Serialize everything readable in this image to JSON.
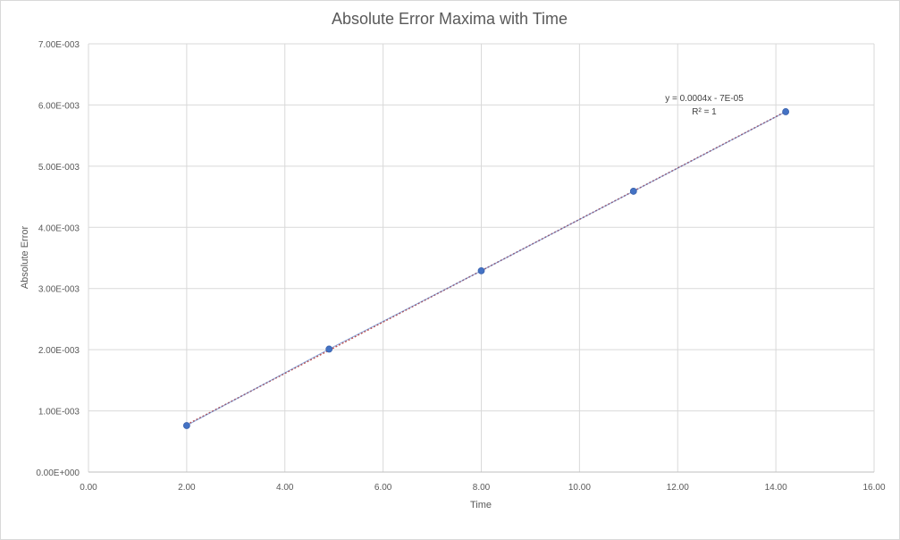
{
  "chart_data": {
    "type": "scatter",
    "title": "Absolute Error Maxima with Time",
    "xlabel": "Time",
    "ylabel": "Absolute Error",
    "xlim": [
      0,
      16
    ],
    "ylim": [
      0,
      0.007
    ],
    "x_ticks": [
      "0.00",
      "2.00",
      "4.00",
      "6.00",
      "8.00",
      "10.00",
      "12.00",
      "14.00",
      "16.00"
    ],
    "y_ticks": [
      "0.00E+000",
      "1.00E-003",
      "2.00E-003",
      "3.00E-003",
      "4.00E-003",
      "5.00E-003",
      "6.00E-003",
      "7.00E-003"
    ],
    "grid": true,
    "legend": "none",
    "series": [
      {
        "x": [
          2.0,
          4.9,
          8.0,
          11.1,
          14.2
        ],
        "y": [
          0.00076,
          0.00201,
          0.00329,
          0.00459,
          0.00589
        ],
        "color": "#4472c4"
      }
    ],
    "trendline": {
      "type": "linear",
      "color": "#c0504d",
      "equation": "y = 0.0004x - 7E-05",
      "r_squared": "R² = 1"
    }
  }
}
